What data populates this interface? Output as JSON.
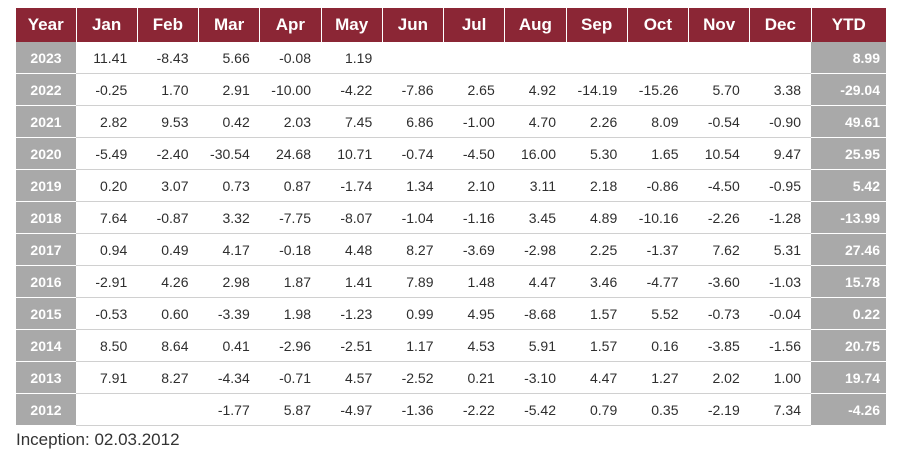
{
  "table": {
    "headers": [
      "Year",
      "Jan",
      "Feb",
      "Mar",
      "Apr",
      "May",
      "Jun",
      "Jul",
      "Aug",
      "Sep",
      "Oct",
      "Nov",
      "Dec",
      "YTD"
    ],
    "rows": [
      {
        "year": "2023",
        "months": [
          "11.41",
          "-8.43",
          "5.66",
          "-0.08",
          "1.19",
          "",
          "",
          "",
          "",
          "",
          "",
          ""
        ],
        "ytd": "8.99"
      },
      {
        "year": "2022",
        "months": [
          "-0.25",
          "1.70",
          "2.91",
          "-10.00",
          "-4.22",
          "-7.86",
          "2.65",
          "4.92",
          "-14.19",
          "-15.26",
          "5.70",
          "3.38"
        ],
        "ytd": "-29.04"
      },
      {
        "year": "2021",
        "months": [
          "2.82",
          "9.53",
          "0.42",
          "2.03",
          "7.45",
          "6.86",
          "-1.00",
          "4.70",
          "2.26",
          "8.09",
          "-0.54",
          "-0.90"
        ],
        "ytd": "49.61"
      },
      {
        "year": "2020",
        "months": [
          "-5.49",
          "-2.40",
          "-30.54",
          "24.68",
          "10.71",
          "-0.74",
          "-4.50",
          "16.00",
          "5.30",
          "1.65",
          "10.54",
          "9.47"
        ],
        "ytd": "25.95"
      },
      {
        "year": "2019",
        "months": [
          "0.20",
          "3.07",
          "0.73",
          "0.87",
          "-1.74",
          "1.34",
          "2.10",
          "3.11",
          "2.18",
          "-0.86",
          "-4.50",
          "-0.95"
        ],
        "ytd": "5.42"
      },
      {
        "year": "2018",
        "months": [
          "7.64",
          "-0.87",
          "3.32",
          "-7.75",
          "-8.07",
          "-1.04",
          "-1.16",
          "3.45",
          "4.89",
          "-10.16",
          "-2.26",
          "-1.28"
        ],
        "ytd": "-13.99"
      },
      {
        "year": "2017",
        "months": [
          "0.94",
          "0.49",
          "4.17",
          "-0.18",
          "4.48",
          "8.27",
          "-3.69",
          "-2.98",
          "2.25",
          "-1.37",
          "7.62",
          "5.31"
        ],
        "ytd": "27.46"
      },
      {
        "year": "2016",
        "months": [
          "-2.91",
          "4.26",
          "2.98",
          "1.87",
          "1.41",
          "7.89",
          "1.48",
          "4.47",
          "3.46",
          "-4.77",
          "-3.60",
          "-1.03"
        ],
        "ytd": "15.78"
      },
      {
        "year": "2015",
        "months": [
          "-0.53",
          "0.60",
          "-3.39",
          "1.98",
          "-1.23",
          "0.99",
          "4.95",
          "-8.68",
          "1.57",
          "5.52",
          "-0.73",
          "-0.04"
        ],
        "ytd": "0.22"
      },
      {
        "year": "2014",
        "months": [
          "8.50",
          "8.64",
          "0.41",
          "-2.96",
          "-2.51",
          "1.17",
          "4.53",
          "5.91",
          "1.57",
          "0.16",
          "-3.85",
          "-1.56"
        ],
        "ytd": "20.75"
      },
      {
        "year": "2013",
        "months": [
          "7.91",
          "8.27",
          "-4.34",
          "-0.71",
          "4.57",
          "-2.52",
          "0.21",
          "-3.10",
          "4.47",
          "1.27",
          "2.02",
          "1.00"
        ],
        "ytd": "19.74"
      },
      {
        "year": "2012",
        "months": [
          "",
          "",
          "-1.77",
          "5.87",
          "-4.97",
          "-1.36",
          "-2.22",
          "-5.42",
          "0.79",
          "0.35",
          "-2.19",
          "7.34"
        ],
        "ytd": "-4.26"
      }
    ]
  },
  "footnote": "Inception: 02.03.2012",
  "colors": {
    "header_bg": "#8b2635",
    "side_column_bg": "#a9a9a9",
    "text": "#333333"
  }
}
